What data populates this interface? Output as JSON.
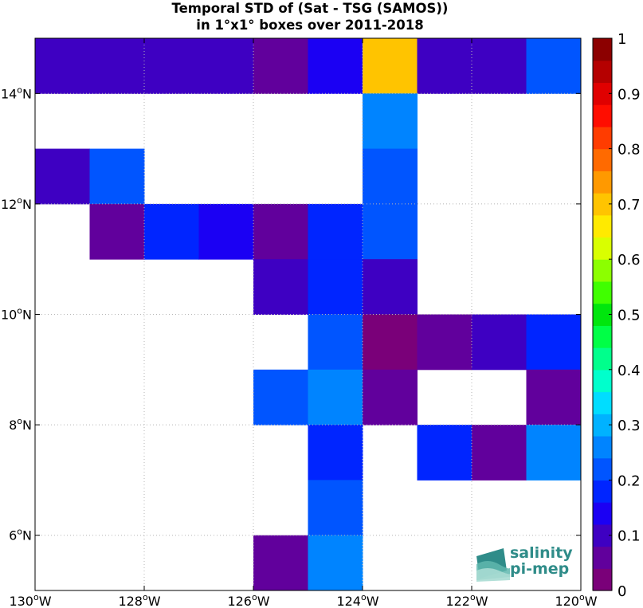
{
  "chart_data": {
    "type": "heatmap",
    "title_line1": "Temporal STD of (Sat - TSG (SAMOS))",
    "title_line2": "in 1°x1° boxes over 2011-2018",
    "xlim": [
      -130,
      -120
    ],
    "ylim": [
      5,
      15
    ],
    "x_ticks": [
      {
        "value": -130,
        "deg": "130",
        "hem": "W"
      },
      {
        "value": -128,
        "deg": "128",
        "hem": "W"
      },
      {
        "value": -126,
        "deg": "126",
        "hem": "W"
      },
      {
        "value": -124,
        "deg": "124",
        "hem": "W"
      },
      {
        "value": -122,
        "deg": "122",
        "hem": "W"
      },
      {
        "value": -120,
        "deg": "120",
        "hem": "W"
      }
    ],
    "y_ticks": [
      {
        "value": 6,
        "deg": "6",
        "hem": "N"
      },
      {
        "value": 8,
        "deg": "8",
        "hem": "N"
      },
      {
        "value": 10,
        "deg": "10",
        "hem": "N"
      },
      {
        "value": 12,
        "deg": "12",
        "hem": "N"
      },
      {
        "value": 14,
        "deg": "14",
        "hem": "N"
      }
    ],
    "grid": true,
    "colorbar": {
      "range": [
        0,
        1
      ],
      "tick_labels": [
        "0",
        "0.1",
        "0.2",
        "0.3",
        "0.4",
        "0.5",
        "0.6",
        "0.7",
        "0.8",
        "0.9",
        "1"
      ],
      "colors": [
        "#7a0079",
        "#61009c",
        "#3e00c2",
        "#1b00f3",
        "#0025ff",
        "#0055ff",
        "#0084ff",
        "#00b2ff",
        "#00ddff",
        "#00ffcc",
        "#00ff8c",
        "#00ff46",
        "#00e60d",
        "#40ff00",
        "#8cff00",
        "#d9ff00",
        "#ffea00",
        "#ffc400",
        "#ff9900",
        "#ff6a00",
        "#ff3c00",
        "#ff0d00",
        "#e00000",
        "#b50000",
        "#8c0000"
      ]
    },
    "cells": [
      {
        "lon": -130,
        "lat": 14,
        "value": 0.11
      },
      {
        "lon": -129,
        "lat": 14,
        "value": 0.11
      },
      {
        "lon": -128,
        "lat": 14,
        "value": 0.11
      },
      {
        "lon": -127,
        "lat": 14,
        "value": 0.11
      },
      {
        "lon": -126,
        "lat": 14,
        "value": 0.07
      },
      {
        "lon": -125,
        "lat": 14,
        "value": 0.12
      },
      {
        "lon": -124,
        "lat": 14,
        "value": 0.7
      },
      {
        "lon": -123,
        "lat": 14,
        "value": 0.11
      },
      {
        "lon": -122,
        "lat": 14,
        "value": 0.11
      },
      {
        "lon": -121,
        "lat": 14,
        "value": 0.22
      },
      {
        "lon": -124,
        "lat": 13,
        "value": 0.27
      },
      {
        "lon": -130,
        "lat": 12,
        "value": 0.11
      },
      {
        "lon": -129,
        "lat": 12,
        "value": 0.21
      },
      {
        "lon": -124,
        "lat": 12,
        "value": 0.21
      },
      {
        "lon": -129,
        "lat": 11,
        "value": 0.07
      },
      {
        "lon": -128,
        "lat": 11,
        "value": 0.17
      },
      {
        "lon": -127,
        "lat": 11,
        "value": 0.12
      },
      {
        "lon": -126,
        "lat": 11,
        "value": 0.07
      },
      {
        "lon": -125,
        "lat": 11,
        "value": 0.17
      },
      {
        "lon": -124,
        "lat": 11,
        "value": 0.21
      },
      {
        "lon": -126,
        "lat": 10,
        "value": 0.11
      },
      {
        "lon": -125,
        "lat": 10,
        "value": 0.17
      },
      {
        "lon": -124,
        "lat": 10,
        "value": 0.11
      },
      {
        "lon": -125,
        "lat": 9,
        "value": 0.21
      },
      {
        "lon": -124,
        "lat": 9,
        "value": 0.02
      },
      {
        "lon": -123,
        "lat": 9,
        "value": 0.07
      },
      {
        "lon": -122,
        "lat": 9,
        "value": 0.11
      },
      {
        "lon": -121,
        "lat": 9,
        "value": 0.17
      },
      {
        "lon": -126,
        "lat": 8,
        "value": 0.21
      },
      {
        "lon": -125,
        "lat": 8,
        "value": 0.27
      },
      {
        "lon": -124,
        "lat": 8,
        "value": 0.07
      },
      {
        "lon": -121,
        "lat": 8,
        "value": 0.07
      },
      {
        "lon": -125,
        "lat": 7,
        "value": 0.17
      },
      {
        "lon": -123,
        "lat": 7,
        "value": 0.17
      },
      {
        "lon": -122,
        "lat": 7,
        "value": 0.07
      },
      {
        "lon": -121,
        "lat": 7,
        "value": 0.27
      },
      {
        "lon": -125,
        "lat": 6,
        "value": 0.21
      },
      {
        "lon": -126,
        "lat": 5,
        "value": 0.07
      },
      {
        "lon": -125,
        "lat": 5,
        "value": 0.27
      }
    ]
  },
  "logo": {
    "line1": "salinity",
    "line2": "pi-mep",
    "color": "#2f8c89"
  }
}
